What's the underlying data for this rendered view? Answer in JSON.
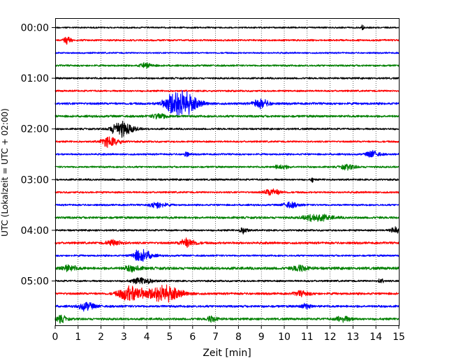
{
  "chart_data": {
    "type": "line",
    "title": "",
    "xlabel": "Zeit  [min]",
    "ylabel": "UTC (Lokalzeit = UTC + 02:00)",
    "xlim": [
      0,
      15
    ],
    "x_ticks": [
      "0",
      "1",
      "2",
      "3",
      "4",
      "5",
      "6",
      "7",
      "8",
      "9",
      "10",
      "11",
      "12",
      "13",
      "14",
      "15"
    ],
    "y_ticks": [
      "00:00",
      "01:00",
      "02:00",
      "03:00",
      "04:00",
      "05:00"
    ],
    "grid_x": true,
    "trace_colors": [
      "#000000",
      "#ff0000",
      "#0000ff",
      "#008000"
    ],
    "traces": [
      {
        "start": "00:00",
        "color": "#000000",
        "base_amp": 0.1,
        "events": [
          {
            "t": 13.4,
            "amp": 0.35,
            "width": 0.05
          }
        ]
      },
      {
        "start": "00:15",
        "color": "#ff0000",
        "base_amp": 0.12,
        "events": [
          {
            "t": 0.5,
            "amp": 0.5,
            "width": 0.15
          }
        ]
      },
      {
        "start": "00:30",
        "color": "#0000ff",
        "base_amp": 0.1,
        "events": []
      },
      {
        "start": "00:45",
        "color": "#008000",
        "base_amp": 0.12,
        "events": [
          {
            "t": 3.9,
            "amp": 0.3,
            "width": 0.25
          }
        ]
      },
      {
        "start": "01:00",
        "color": "#000000",
        "base_amp": 0.12,
        "events": []
      },
      {
        "start": "01:15",
        "color": "#ff0000",
        "base_amp": 0.12,
        "events": []
      },
      {
        "start": "01:30",
        "color": "#0000ff",
        "base_amp": 0.15,
        "events": [
          {
            "t": 5.3,
            "amp": 1.9,
            "width": 0.55
          },
          {
            "t": 8.9,
            "amp": 0.55,
            "width": 0.3
          }
        ]
      },
      {
        "start": "01:45",
        "color": "#008000",
        "base_amp": 0.15,
        "events": [
          {
            "t": 4.5,
            "amp": 0.35,
            "width": 0.3
          }
        ]
      },
      {
        "start": "02:00",
        "color": "#000000",
        "base_amp": 0.12,
        "events": [
          {
            "t": 2.8,
            "amp": 1.0,
            "width": 0.4
          }
        ]
      },
      {
        "start": "02:15",
        "color": "#ff0000",
        "base_amp": 0.12,
        "events": [
          {
            "t": 2.3,
            "amp": 0.6,
            "width": 0.35
          }
        ]
      },
      {
        "start": "02:30",
        "color": "#0000ff",
        "base_amp": 0.12,
        "events": [
          {
            "t": 5.7,
            "amp": 0.3,
            "width": 0.1
          },
          {
            "t": 13.8,
            "amp": 0.45,
            "width": 0.25
          }
        ]
      },
      {
        "start": "02:45",
        "color": "#008000",
        "base_amp": 0.12,
        "events": [
          {
            "t": 9.8,
            "amp": 0.3,
            "width": 0.25
          },
          {
            "t": 12.7,
            "amp": 0.3,
            "width": 0.3
          }
        ]
      },
      {
        "start": "03:00",
        "color": "#000000",
        "base_amp": 0.12,
        "events": [
          {
            "t": 11.2,
            "amp": 0.35,
            "width": 0.05
          }
        ]
      },
      {
        "start": "03:15",
        "color": "#ff0000",
        "base_amp": 0.12,
        "events": [
          {
            "t": 9.4,
            "amp": 0.45,
            "width": 0.3
          }
        ]
      },
      {
        "start": "03:30",
        "color": "#0000ff",
        "base_amp": 0.12,
        "events": [
          {
            "t": 4.4,
            "amp": 0.4,
            "width": 0.3
          },
          {
            "t": 10.2,
            "amp": 0.35,
            "width": 0.3
          }
        ]
      },
      {
        "start": "03:45",
        "color": "#008000",
        "base_amp": 0.15,
        "events": [
          {
            "t": 11.3,
            "amp": 0.45,
            "width": 0.5
          }
        ]
      },
      {
        "start": "04:00",
        "color": "#000000",
        "base_amp": 0.12,
        "events": [
          {
            "t": 8.2,
            "amp": 0.4,
            "width": 0.15
          },
          {
            "t": 14.8,
            "amp": 0.4,
            "width": 0.2
          }
        ]
      },
      {
        "start": "04:15",
        "color": "#ff0000",
        "base_amp": 0.15,
        "events": [
          {
            "t": 2.5,
            "amp": 0.35,
            "width": 0.3
          },
          {
            "t": 5.7,
            "amp": 0.55,
            "width": 0.3
          }
        ]
      },
      {
        "start": "04:30",
        "color": "#0000ff",
        "base_amp": 0.12,
        "events": [
          {
            "t": 3.7,
            "amp": 0.8,
            "width": 0.35
          }
        ]
      },
      {
        "start": "04:45",
        "color": "#008000",
        "base_amp": 0.18,
        "events": [
          {
            "t": 0.5,
            "amp": 0.35,
            "width": 0.3
          },
          {
            "t": 3.3,
            "amp": 0.35,
            "width": 0.3
          },
          {
            "t": 10.6,
            "amp": 0.35,
            "width": 0.3
          }
        ]
      },
      {
        "start": "05:00",
        "color": "#000000",
        "base_amp": 0.12,
        "events": [
          {
            "t": 3.7,
            "amp": 0.4,
            "width": 0.4
          },
          {
            "t": 14.2,
            "amp": 0.3,
            "width": 0.1
          }
        ]
      },
      {
        "start": "05:15",
        "color": "#ff0000",
        "base_amp": 0.15,
        "events": [
          {
            "t": 3.2,
            "amp": 1.0,
            "width": 0.5
          },
          {
            "t": 4.6,
            "amp": 1.05,
            "width": 0.6
          },
          {
            "t": 10.7,
            "amp": 0.3,
            "width": 0.3
          }
        ]
      },
      {
        "start": "05:30",
        "color": "#0000ff",
        "base_amp": 0.15,
        "events": [
          {
            "t": 1.3,
            "amp": 0.5,
            "width": 0.3
          },
          {
            "t": 10.9,
            "amp": 0.3,
            "width": 0.2
          }
        ]
      },
      {
        "start": "05:45",
        "color": "#008000",
        "base_amp": 0.15,
        "events": [
          {
            "t": 0.2,
            "amp": 0.45,
            "width": 0.2
          },
          {
            "t": 6.8,
            "amp": 0.35,
            "width": 0.2
          },
          {
            "t": 12.5,
            "amp": 0.35,
            "width": 0.3
          }
        ]
      }
    ]
  }
}
